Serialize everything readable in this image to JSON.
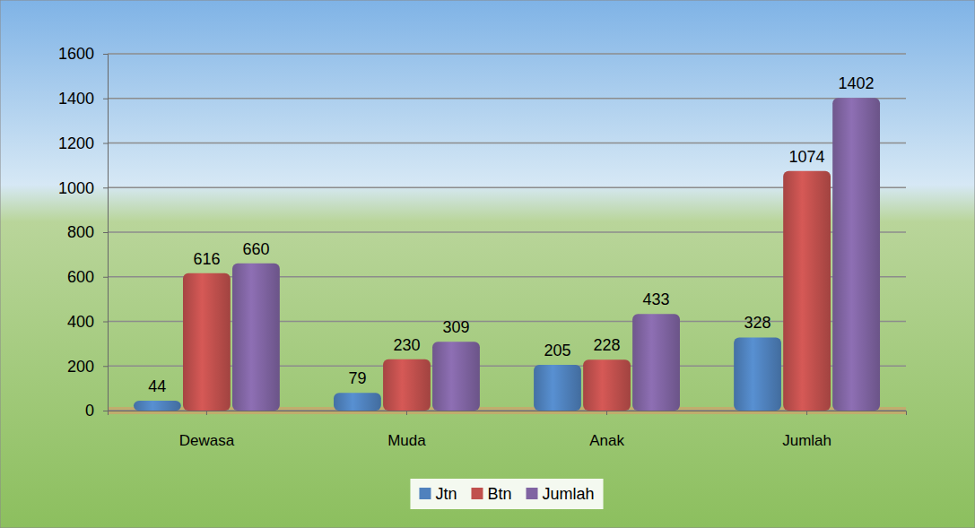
{
  "chart_data": {
    "type": "bar",
    "categories": [
      "Dewasa",
      "Muda",
      "Anak",
      "Jumlah"
    ],
    "series": [
      {
        "name": "Jtn",
        "color": "#4f81bd",
        "values": [
          44,
          79,
          205,
          328
        ]
      },
      {
        "name": "Btn",
        "color": "#c0504d",
        "values": [
          616,
          230,
          228,
          1074
        ]
      },
      {
        "name": "Jumlah",
        "color": "#8064a2",
        "values": [
          660,
          309,
          433,
          1402
        ]
      }
    ],
    "ylim": [
      0,
      1600
    ],
    "yticks": [
      0,
      200,
      400,
      600,
      800,
      1000,
      1200,
      1400,
      1600
    ],
    "grid": true,
    "data_labels": true,
    "legend": "bottom"
  }
}
